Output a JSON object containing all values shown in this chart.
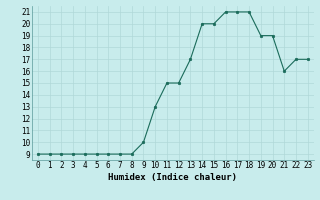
{
  "x": [
    0,
    1,
    2,
    3,
    4,
    5,
    6,
    7,
    8,
    9,
    10,
    11,
    12,
    13,
    14,
    15,
    16,
    17,
    18,
    19,
    20,
    21,
    22,
    23
  ],
  "y": [
    9,
    9,
    9,
    9,
    9,
    9,
    9,
    9,
    9,
    10,
    13,
    15,
    15,
    17,
    20,
    20,
    21,
    21,
    21,
    19,
    19,
    16,
    17,
    17
  ],
  "line_color": "#1a6b5a",
  "marker_color": "#1a6b5a",
  "bg_color": "#c8ecec",
  "grid_color": "#b0d8d8",
  "xlabel": "Humidex (Indice chaleur)",
  "xlim": [
    -0.5,
    23.5
  ],
  "ylim": [
    8.5,
    21.5
  ],
  "yticks": [
    9,
    10,
    11,
    12,
    13,
    14,
    15,
    16,
    17,
    18,
    19,
    20,
    21
  ],
  "xticks": [
    0,
    1,
    2,
    3,
    4,
    5,
    6,
    7,
    8,
    9,
    10,
    11,
    12,
    13,
    14,
    15,
    16,
    17,
    18,
    19,
    20,
    21,
    22,
    23
  ],
  "xlabel_fontsize": 6.5,
  "tick_fontsize": 5.5
}
